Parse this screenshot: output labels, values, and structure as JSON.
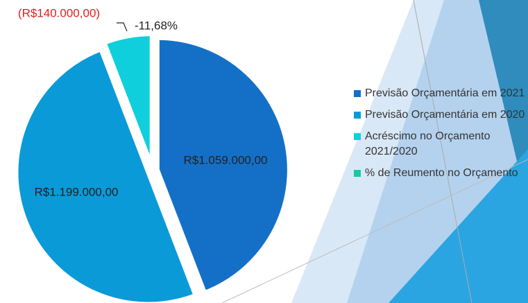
{
  "chart_data": {
    "type": "pie",
    "categories": [
      "Previsão Orçamentária em 2021",
      "Previsão Orçamentária em 2020",
      "Acréscimo no Orçamento 2021/2020",
      "% de Reumento no Orçamento"
    ],
    "values": [
      1059000,
      1199000,
      -140000,
      -11.68
    ],
    "value_labels": [
      "R$1.059.000,00",
      "R$1.199.000,00",
      "(R$140.000,00)",
      "-11,68%"
    ],
    "colors": [
      "#1470c7",
      "#0a9ad8",
      "#0fcfdc",
      "#12cc9c"
    ]
  }
}
